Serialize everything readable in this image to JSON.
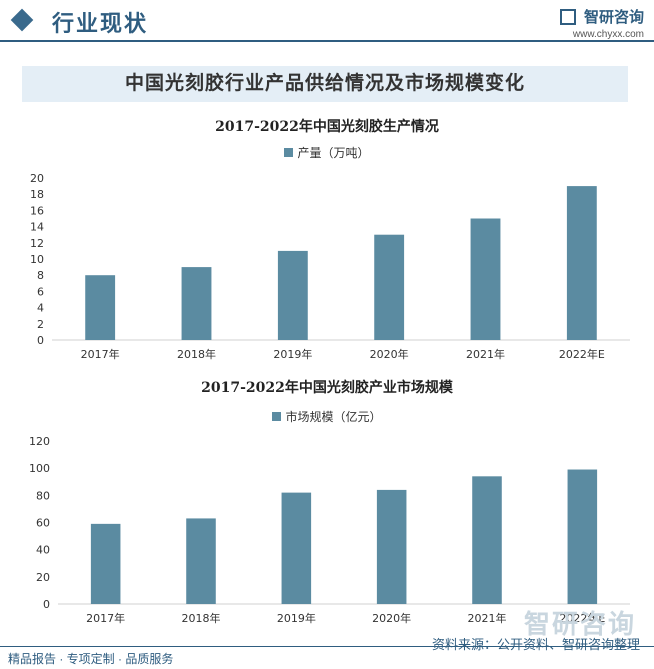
{
  "header": {
    "title": "行业现状",
    "brand_name": "智研咨询",
    "brand_url": "www.chyxx.com"
  },
  "banner": "中国光刻胶行业产品供给情况及市场规模变化",
  "chart_data": [
    {
      "type": "bar",
      "title": "2017-2022年中国光刻胶生产情况",
      "categories": [
        "2017年",
        "2018年",
        "2019年",
        "2020年",
        "2021年",
        "2022年E"
      ],
      "series": [
        {
          "name": "产量（万吨）",
          "values": [
            8.0,
            9.0,
            11.0,
            13.0,
            15.0,
            19.0
          ]
        }
      ],
      "ylim": [
        0,
        20
      ],
      "yticks": [
        0,
        2,
        4,
        6,
        8,
        10,
        12,
        14,
        16,
        18,
        20
      ],
      "color": "#5b8ba1",
      "legend": "top-center",
      "grid": false
    },
    {
      "type": "bar",
      "title": "2017-2022年中国光刻胶产业市场规模",
      "categories": [
        "2017年",
        "2018年",
        "2019年",
        "2020年",
        "2021年",
        "2022年E"
      ],
      "series": [
        {
          "name": "市场规模（亿元）",
          "values": [
            59,
            63,
            82,
            84,
            94,
            99
          ]
        }
      ],
      "ylim": [
        0,
        120
      ],
      "yticks": [
        0,
        20,
        40,
        60,
        80,
        100,
        120
      ],
      "color": "#5b8ba1",
      "legend": "top-center",
      "grid": false
    }
  ],
  "footer": {
    "left": "精品报告 · 专项定制 · 品质服务",
    "right": "资料来源：公开资料、智研咨询整理",
    "watermark": "智研咨询"
  }
}
